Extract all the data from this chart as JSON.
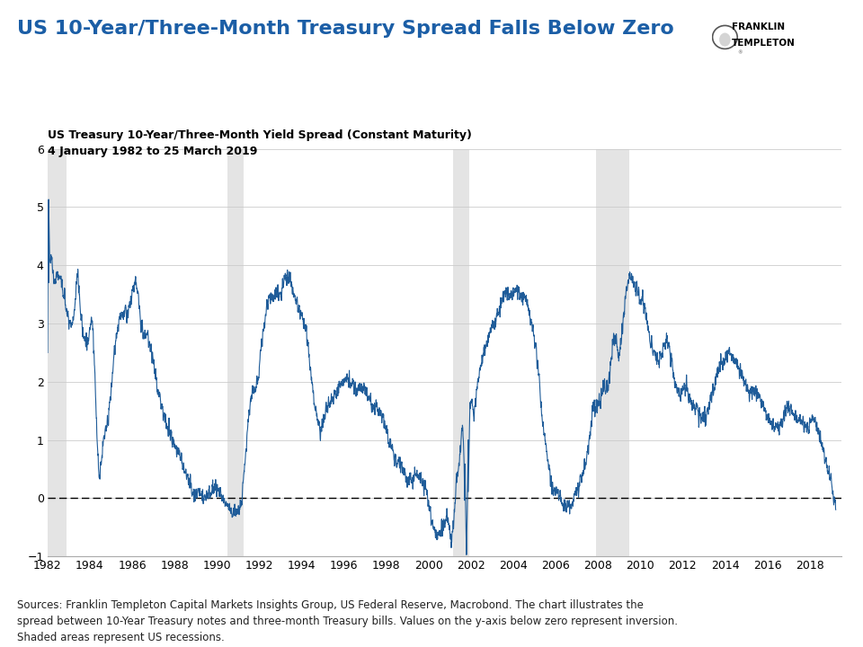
{
  "title": "US 10-Year/Three-Month Treasury Spread Falls Below Zero",
  "subtitle1": "US Treasury 10-Year/Three-Month Yield Spread (Constant Maturity)",
  "subtitle2": "4 January 1982 to 25 March 2019",
  "title_color": "#1B5EA6",
  "line_color": "#1F5C99",
  "line_width": 0.8,
  "background_color": "#FFFFFF",
  "recession_color": "#D3D3D3",
  "recession_alpha": 0.6,
  "ylim": [
    -1.0,
    6.0
  ],
  "yticks": [
    -1,
    0,
    1,
    2,
    3,
    4,
    5,
    6
  ],
  "footnote": "Sources: Franklin Templeton Capital Markets Insights Group, US Federal Reserve, Macrobond. The chart illustrates the\nspread between 10-Year Treasury notes and three-month Treasury bills. Values on the y-axis below zero represent inversion.\nShaded areas represent US recessions.",
  "footnote_fontsize": 8.5,
  "title_fontsize": 16,
  "subtitle_fontsize": 9,
  "tick_fontsize": 9,
  "dpi": 100,
  "fig_width": 9.6,
  "fig_height": 7.2
}
